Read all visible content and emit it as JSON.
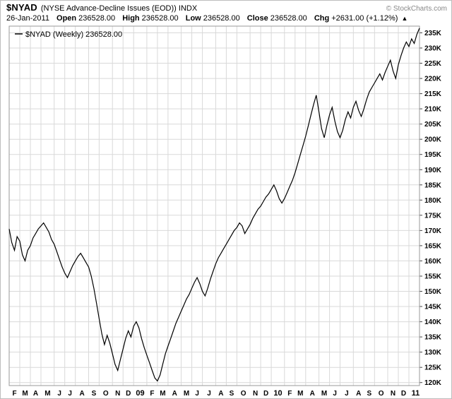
{
  "header": {
    "symbol": "$NYAD",
    "description": "(NYSE Advance-Decline Issues (EOD)) INDX",
    "copyright": "© StockCharts.com",
    "date": "26-Jan-2011",
    "fields": [
      {
        "label": "Open",
        "value": "236528.00"
      },
      {
        "label": "High",
        "value": "236528.00"
      },
      {
        "label": "Low",
        "value": "236528.00"
      },
      {
        "label": "Close",
        "value": "236528.00"
      },
      {
        "label": "Chg",
        "value": "+2631.00 (+1.12%)"
      }
    ],
    "change_arrow": "▲"
  },
  "legend": {
    "label": "$NYAD (Weekly)",
    "value": "236528.00"
  },
  "chart_data": {
    "type": "line",
    "title": "$NYAD (NYSE Advance-Decline Issues (EOD)) INDX",
    "series_name": "$NYAD (Weekly)",
    "timeframe": "Weekly",
    "last_value": 236528,
    "line_color": "#000000",
    "grid_color": "#d9d9d9",
    "border_color": "#999999",
    "grid_on": true,
    "legend_position": "top-left",
    "y_axis": {
      "min": 119000,
      "max": 237200,
      "tick_start": 120000,
      "tick_end": 235000,
      "tick_interval": 5000,
      "unit_suffix": "K"
    },
    "x_axis": {
      "start": "Feb-2008",
      "end": "Jan-2011",
      "month_labels": [
        "F",
        "M",
        "A",
        "M",
        "J",
        "J",
        "A",
        "S",
        "O",
        "N",
        "D",
        "09",
        "F",
        "M",
        "A",
        "M",
        "J",
        "J",
        "A",
        "S",
        "O",
        "N",
        "D",
        "10",
        "F",
        "M",
        "A",
        "M",
        "J",
        "J",
        "A",
        "S",
        "O",
        "N",
        "D",
        "11"
      ],
      "year_label_indices": [
        11,
        23,
        35
      ]
    },
    "weeks_per_month": [
      4,
      4,
      4,
      5,
      4,
      4,
      5,
      4,
      5,
      4,
      4,
      5,
      4,
      4,
      5,
      4,
      4,
      5,
      4,
      4,
      5,
      4,
      4,
      5,
      4,
      4,
      5,
      4,
      4,
      5,
      4,
      4,
      5,
      4,
      4,
      5
    ],
    "values": [
      170500,
      166000,
      163500,
      168000,
      166500,
      162000,
      160000,
      163500,
      165000,
      167500,
      169000,
      170500,
      171500,
      172500,
      171000,
      169500,
      167000,
      165500,
      163000,
      160500,
      158000,
      156000,
      154500,
      156500,
      158500,
      160000,
      161500,
      162500,
      161000,
      159500,
      158000,
      155000,
      151000,
      146000,
      141000,
      136000,
      132500,
      135500,
      133000,
      129500,
      126000,
      124000,
      127500,
      131000,
      134500,
      137000,
      135000,
      138500,
      140000,
      138000,
      134500,
      131500,
      129000,
      126500,
      124000,
      121500,
      120500,
      122500,
      126000,
      129500,
      132000,
      134500,
      137000,
      139500,
      141500,
      143500,
      145500,
      147500,
      149000,
      151000,
      153000,
      154500,
      152500,
      150000,
      148500,
      151000,
      154000,
      156500,
      159000,
      161000,
      162500,
      164000,
      165500,
      167000,
      168500,
      170000,
      171000,
      172500,
      171500,
      169000,
      170500,
      172000,
      174000,
      175500,
      177000,
      178000,
      179500,
      181000,
      182000,
      183500,
      185000,
      183000,
      180500,
      179000,
      180500,
      182500,
      184500,
      186500,
      189000,
      192000,
      195000,
      198000,
      201000,
      204500,
      208000,
      211500,
      214500,
      209000,
      203500,
      200500,
      204500,
      208000,
      210500,
      206000,
      202500,
      200500,
      203000,
      206500,
      209000,
      207000,
      210500,
      212500,
      209500,
      207500,
      210000,
      213000,
      215500,
      217000,
      218500,
      220000,
      221500,
      219500,
      222000,
      224000,
      226000,
      222500,
      220000,
      224500,
      227500,
      230000,
      232000,
      230500,
      233000,
      231500,
      234500,
      236528
    ]
  }
}
